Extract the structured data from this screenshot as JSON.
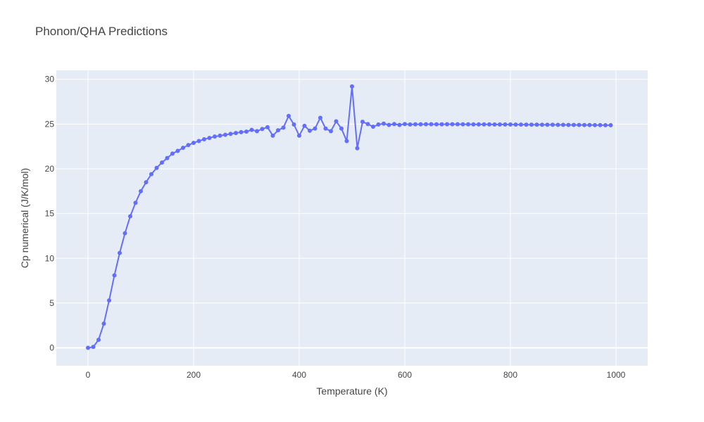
{
  "chart_data": {
    "type": "line",
    "title": "Phonon/QHA Predictions",
    "xlabel": "Temperature (K)",
    "ylabel": "Cp numerical (J/K/mol)",
    "xlim": [
      -60,
      1060
    ],
    "ylim": [
      -2,
      31
    ],
    "x_ticks": [
      0,
      200,
      400,
      600,
      800,
      1000
    ],
    "y_ticks": [
      0,
      5,
      10,
      15,
      20,
      25,
      30
    ],
    "grid": true,
    "colors": {
      "series": "#636efa",
      "plot_bg": "#e5ecf6",
      "grid": "#ffffff"
    },
    "series": [
      {
        "mode": "lines+markers",
        "x": [
          0,
          10,
          20,
          30,
          40,
          50,
          60,
          70,
          80,
          90,
          100,
          110,
          120,
          130,
          140,
          150,
          160,
          170,
          180,
          190,
          200,
          210,
          220,
          230,
          240,
          250,
          260,
          270,
          280,
          290,
          300,
          310,
          320,
          330,
          340,
          350,
          360,
          370,
          380,
          390,
          400,
          410,
          420,
          430,
          440,
          450,
          460,
          470,
          480,
          490,
          500,
          510,
          520,
          530,
          540,
          550,
          560,
          570,
          580,
          590,
          600,
          610,
          620,
          630,
          640,
          650,
          660,
          670,
          680,
          690,
          700,
          710,
          720,
          730,
          740,
          750,
          760,
          770,
          780,
          790,
          800,
          810,
          820,
          830,
          840,
          850,
          860,
          870,
          880,
          890,
          900,
          910,
          920,
          930,
          940,
          950,
          960,
          970,
          980,
          990
        ],
        "y": [
          0,
          0.1,
          0.9,
          2.7,
          5.3,
          8.1,
          10.6,
          12.8,
          14.7,
          16.2,
          17.5,
          18.5,
          19.4,
          20.1,
          20.7,
          21.2,
          21.7,
          22.0,
          22.35,
          22.65,
          22.9,
          23.1,
          23.3,
          23.45,
          23.6,
          23.7,
          23.8,
          23.9,
          24.0,
          24.1,
          24.15,
          24.35,
          24.2,
          24.45,
          24.65,
          23.7,
          24.3,
          24.6,
          25.9,
          24.95,
          23.7,
          24.8,
          24.25,
          24.5,
          25.7,
          24.5,
          24.2,
          25.3,
          24.5,
          23.1,
          29.2,
          22.3,
          25.25,
          25.0,
          24.7,
          24.95,
          25.05,
          24.9,
          25.0,
          24.9,
          25.0,
          24.95,
          24.97,
          24.97,
          24.98,
          24.98,
          24.97,
          24.97,
          24.98,
          24.98,
          24.98,
          24.97,
          24.97,
          24.96,
          24.96,
          24.96,
          24.96,
          24.95,
          24.95,
          24.95,
          24.95,
          24.94,
          24.94,
          24.93,
          24.93,
          24.93,
          24.92,
          24.92,
          24.92,
          24.91,
          24.91,
          24.9,
          24.9,
          24.9,
          24.89,
          24.89,
          24.88,
          24.88,
          24.87,
          24.87
        ]
      }
    ]
  }
}
